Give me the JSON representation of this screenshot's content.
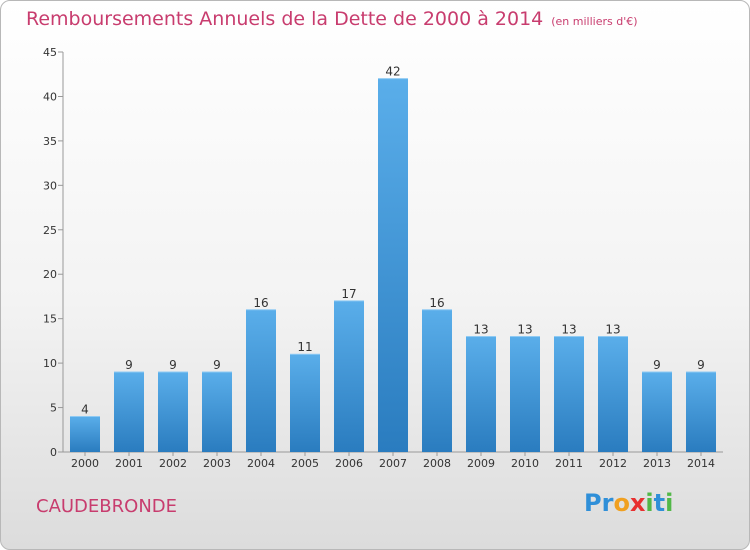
{
  "header": {
    "title": "Remboursements Annuels de la Dette de 2000 à 2014",
    "unit": "(en milliers d'€)"
  },
  "footer": {
    "commune": "CAUDEBRONDE",
    "logo_letters": [
      "P",
      "r",
      "o",
      "x",
      "i",
      "t",
      "i"
    ],
    "logo_colors": [
      "#2f8fd8",
      "#2f8fd8",
      "#f0a020",
      "#e83030",
      "#52b848",
      "#2f8fd8",
      "#52b848"
    ]
  },
  "chart_data": {
    "type": "bar",
    "categories": [
      "2000",
      "2001",
      "2002",
      "2003",
      "2004",
      "2005",
      "2006",
      "2007",
      "2008",
      "2009",
      "2010",
      "2011",
      "2012",
      "2013",
      "2014"
    ],
    "values": [
      4,
      9,
      9,
      9,
      16,
      11,
      17,
      42,
      16,
      13,
      13,
      13,
      13,
      9,
      9
    ],
    "ylim": [
      0,
      45
    ],
    "yticks": [
      0,
      5,
      10,
      15,
      20,
      25,
      30,
      35,
      40,
      45
    ],
    "grid": false,
    "bar_color_top": "#5aaeea",
    "bar_color_bottom": "#2a7cbf"
  }
}
